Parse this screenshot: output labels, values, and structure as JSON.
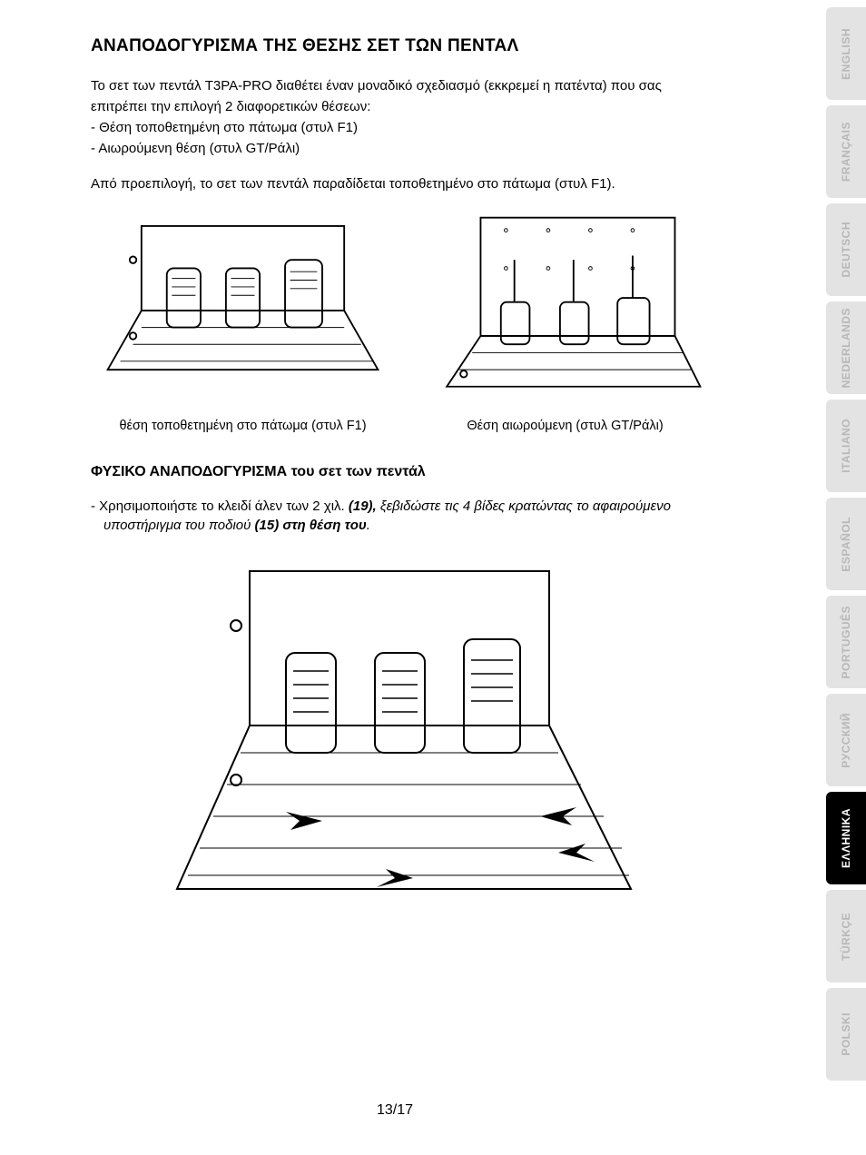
{
  "title": "ΑΝΑΠΟΔΟΓΥΡΙΣΜΑ ΤΗΣ ΘΕΣΗΣ ΣΕΤ ΤΩΝ ΠΕΝΤΑΛ",
  "intro_line1": "Το σετ των πεντάλ T3PA-PRO διαθέτει έναν μοναδικό σχεδιασμό (εκκρεμεί η πατέντα) που σας",
  "intro_line2": "επιτρέπει την επιλογή 2 διαφορετικών θέσεων:",
  "bullet1": "- Θέση τοποθετημένη στο πάτωμα (στυλ F1)",
  "bullet2": "- Αιωρούμενη θέση (στυλ GT/Ράλι)",
  "default_note": "Από προεπιλογή, το σετ των πεντάλ παραδίδεται τοποθετημένο στο πάτωμα (στυλ F1).",
  "caption_left": "θέση τοποθετημένη στο πάτωμα (στυλ F1)",
  "caption_right": "Θέση αιωρούμενη (στυλ GT/Ράλι)",
  "subsection": "ΦΥΣΙΚΟ ΑΝΑΠΟΔΟΓΥΡΙΣΜΑ του σετ των πεντάλ",
  "instr_prefix": "- Χρησιμοποιήστε το κλειδί άλεν των 2 χιλ. ",
  "instr_ref1": "(19),",
  "instr_mid": " ξεβιδώστε τις 4 βίδες κρατώντας το αφαιρούμενο",
  "instr_line2a": "υποστήριγμα του ποδιού ",
  "instr_ref2": "(15) στη θέση του",
  "instr_period": ".",
  "page_number": "13/17",
  "langs": [
    {
      "label": "ENGLISH",
      "active": false
    },
    {
      "label": "FRANÇAIS",
      "active": false
    },
    {
      "label": "DEUTSCH",
      "active": false
    },
    {
      "label": "NEDERLANDS",
      "active": false
    },
    {
      "label": "ITALIANO",
      "active": false
    },
    {
      "label": "ESPAÑOL",
      "active": false
    },
    {
      "label": "PORTUGUÊS",
      "active": false
    },
    {
      "label": "РУССКИЙ",
      "active": false
    },
    {
      "label": "ΕΛΛΗΝΙΚΑ",
      "active": true
    },
    {
      "label": "TÜRKÇE",
      "active": false
    },
    {
      "label": "POLSKI",
      "active": false
    }
  ],
  "colors": {
    "text": "#000000",
    "bg": "#ffffff",
    "tab_inactive_bg": "#e3e3e3",
    "tab_inactive_fg": "#b7b7b7",
    "tab_active_bg": "#000000",
    "tab_active_fg": "#ffffff"
  }
}
